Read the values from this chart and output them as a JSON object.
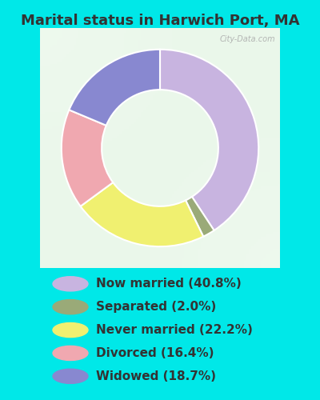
{
  "title": "Marital status in Harwich Port, MA",
  "wedge_sizes": [
    40.8,
    2.0,
    22.2,
    16.4,
    18.7
  ],
  "wedge_colors": [
    "#c8b4e0",
    "#9aaa78",
    "#f0f070",
    "#f0a8b0",
    "#8888d0"
  ],
  "legend_colors": [
    "#c8b4e0",
    "#9aaa78",
    "#f0f070",
    "#f0a8b0",
    "#8888d0"
  ],
  "legend_labels": [
    "Now married (40.8%)",
    "Separated (2.0%)",
    "Never married (22.2%)",
    "Divorced (16.4%)",
    "Widowed (18.7%)"
  ],
  "bg_cyan": "#00e8e8",
  "bg_chart_color1": "#e8f5e8",
  "bg_chart_color2": "#f5fff5",
  "title_fontsize": 13,
  "legend_fontsize": 11,
  "watermark": "City-Data.com",
  "title_color": "#333333",
  "legend_text_color": "#333333"
}
